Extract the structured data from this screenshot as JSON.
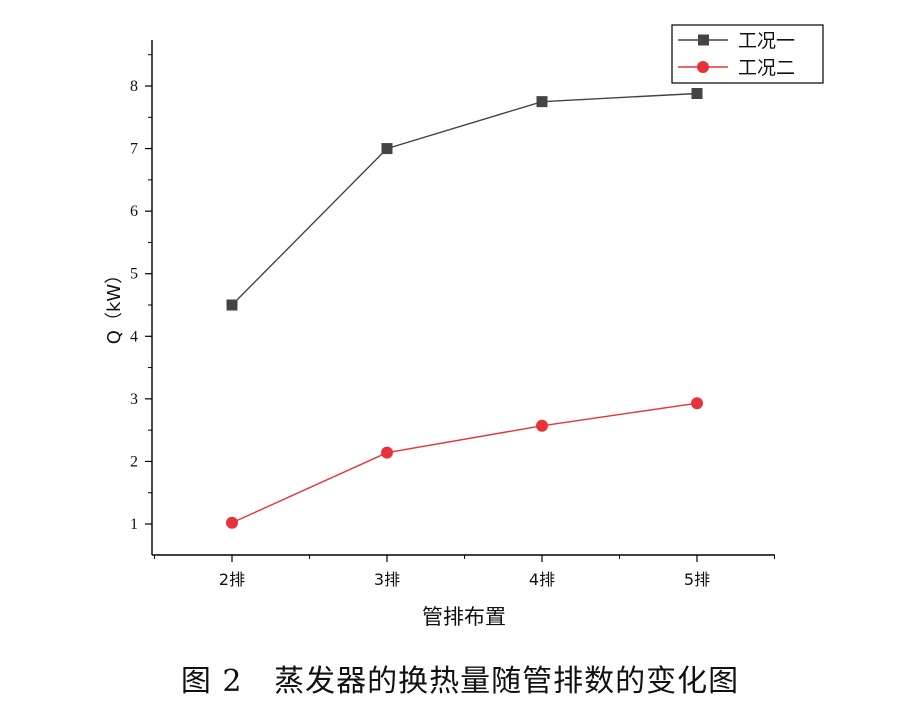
{
  "chart_data": {
    "type": "line",
    "categories": [
      "2排",
      "3排",
      "4排",
      "5排"
    ],
    "series": [
      {
        "name": "工况一",
        "values": [
          4.5,
          7.0,
          7.75,
          7.88
        ],
        "color": "#444444",
        "marker": "square"
      },
      {
        "name": "工况二",
        "values": [
          1.02,
          2.14,
          2.57,
          2.93
        ],
        "color": "#e8323a",
        "marker": "circle"
      }
    ],
    "xlabel": "管排布置",
    "ylabel": "Q（kW）",
    "ylim": [
      0.5,
      8.5
    ],
    "yticks": [
      1,
      2,
      3,
      4,
      5,
      6,
      7,
      8
    ],
    "grid": false,
    "legend_position": "top-right"
  },
  "caption": {
    "figure_no": "图 2",
    "text": "蒸发器的换热量随管排数的变化图"
  }
}
